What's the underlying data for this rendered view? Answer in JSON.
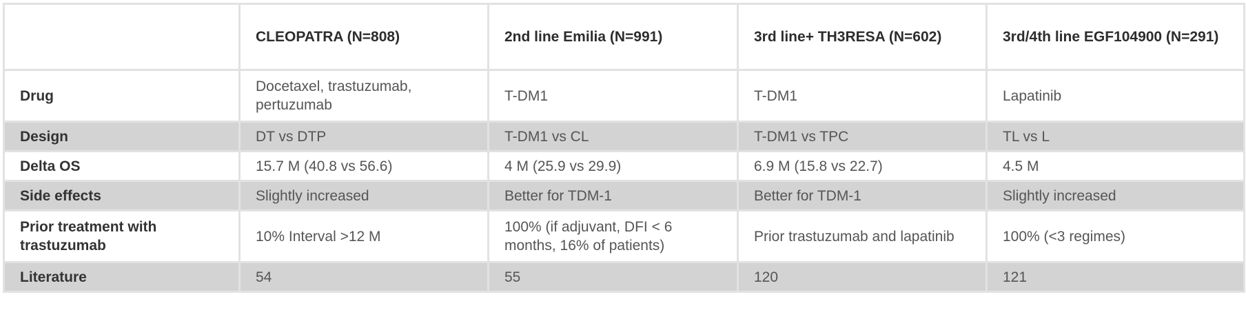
{
  "headers": [
    "",
    "CLEOPATRA  (N=808)",
    "2nd line Emilia (N=991)",
    "3rd line+ TH3RESA  (N=602)",
    "3rd/4th line EGF104900  (N=291)"
  ],
  "rows": [
    {
      "label": "Drug",
      "cells": [
        "Docetaxel, trastuzumab, pertuzumab",
        "T-DM1",
        "T-DM1",
        "Lapatinib"
      ]
    },
    {
      "label": "Design",
      "cells": [
        "DT vs DTP",
        "T-DM1 vs CL",
        "T-DM1 vs TPC",
        "TL vs L"
      ]
    },
    {
      "label": "Delta OS",
      "cells": [
        "15.7 M (40.8 vs 56.6)",
        "4 M (25.9 vs 29.9)",
        "6.9 M (15.8 vs 22.7)",
        "4.5 M"
      ]
    },
    {
      "label": "Side effects",
      "cells": [
        "Slightly increased",
        "Better for TDM-1",
        "Better for TDM-1",
        "Slightly increased"
      ]
    },
    {
      "label": "Prior treatment with trastuzumab",
      "cells": [
        "10% Interval >12 M",
        "100% (if adjuvant, DFI < 6 months, 16% of patients)",
        "Prior trastuzumab and lapatinib",
        "100% (<3 regimes)"
      ]
    },
    {
      "label": "Literature",
      "cells": [
        "54",
        "55",
        "120",
        "121"
      ]
    }
  ],
  "colors": {
    "striped_row": "#d3d3d3",
    "border": "#e2e2e2"
  }
}
